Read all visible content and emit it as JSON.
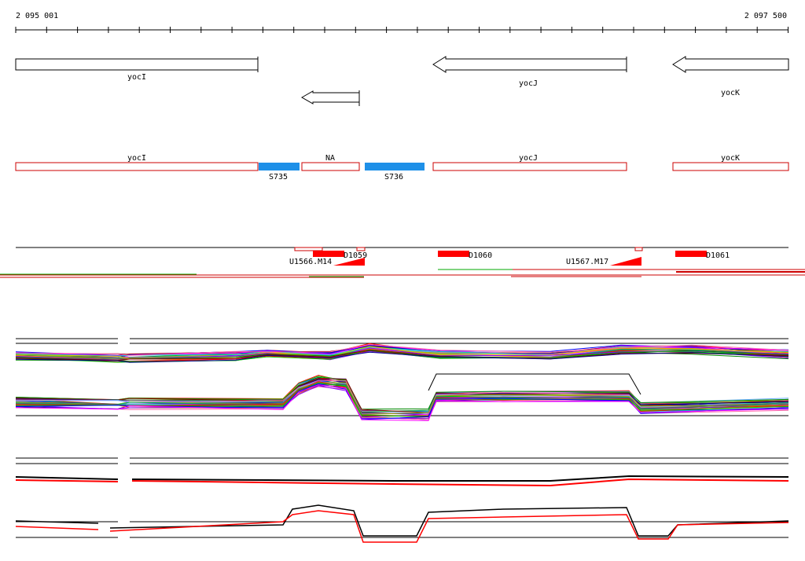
{
  "ruler": {
    "start_label": "2 095 001",
    "end_label": "2 097 500"
  },
  "genes": [
    {
      "label": "yocI",
      "strand": "+"
    },
    {
      "label": "",
      "strand": "-"
    },
    {
      "label": "yocJ",
      "strand": "-"
    },
    {
      "label": "yocK",
      "strand": "-"
    }
  ],
  "features": [
    {
      "label": "yocI",
      "kind": "gene"
    },
    {
      "label": "S735",
      "kind": "segment"
    },
    {
      "label": "NA",
      "kind": "gene"
    },
    {
      "label": "S736",
      "kind": "segment"
    },
    {
      "label": "yocJ",
      "kind": "gene"
    },
    {
      "label": "yocK",
      "kind": "gene"
    }
  ],
  "elements": [
    {
      "label": "D1059",
      "kind": "D"
    },
    {
      "label": "D1060",
      "kind": "D"
    },
    {
      "label": "D1061",
      "kind": "D"
    },
    {
      "label": "U1566.M14",
      "kind": "U"
    },
    {
      "label": "U1567.M17",
      "kind": "U"
    }
  ],
  "colors": {
    "segment": "#1e90e8",
    "feature_border": "#cc0000",
    "element_fill": "#ff0000",
    "profile_black": "#000000",
    "profile_red": "#ff0000",
    "coverage_green": "#00aa00"
  }
}
